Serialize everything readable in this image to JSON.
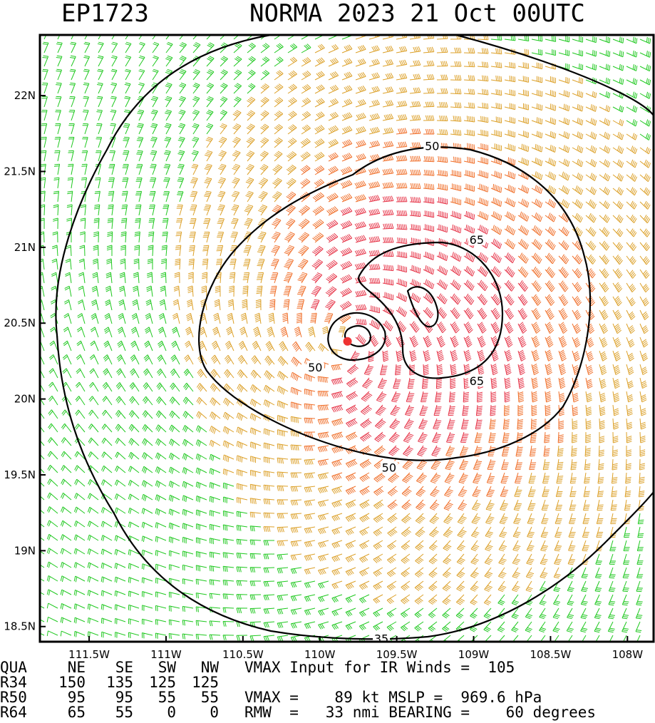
{
  "header": {
    "storm_id": "EP1723",
    "title": "NORMA 2023 21 Oct 00UTC"
  },
  "chart_data": {
    "type": "wind-barb-contour",
    "xlim": [
      -111.82,
      -107.83
    ],
    "ylim": [
      18.4,
      22.4
    ],
    "x_ticks": [
      {
        "value": -111.5,
        "label": "111.5W"
      },
      {
        "value": -111.0,
        "label": "111W"
      },
      {
        "value": -110.5,
        "label": "110.5W"
      },
      {
        "value": -110.0,
        "label": "110W"
      },
      {
        "value": -109.5,
        "label": "109.5W"
      },
      {
        "value": -109.0,
        "label": "109W"
      },
      {
        "value": -108.5,
        "label": "108.5W"
      },
      {
        "value": -108.0,
        "label": "108W"
      }
    ],
    "y_ticks": [
      {
        "value": 22.0,
        "label": "22N"
      },
      {
        "value": 21.5,
        "label": "21.5N"
      },
      {
        "value": 21.0,
        "label": "21N"
      },
      {
        "value": 20.5,
        "label": "20.5N"
      },
      {
        "value": 20.0,
        "label": "20N"
      },
      {
        "value": 19.5,
        "label": "19.5N"
      },
      {
        "value": 19.0,
        "label": "19N"
      },
      {
        "value": 18.5,
        "label": "18.5N"
      }
    ],
    "center": {
      "lon": -109.82,
      "lat": 20.38
    },
    "barb_colors": {
      "calm": "#b4b4b4",
      "lt34": "#1ec81e",
      "34_50": "#dca028",
      "50_64": "#f06e28",
      "ge64": "#e63246"
    },
    "contour_labels": [
      {
        "text": "50",
        "lon": -109.27,
        "lat": 21.67
      },
      {
        "text": "65",
        "lon": -108.98,
        "lat": 21.05
      },
      {
        "text": "65",
        "lon": -108.98,
        "lat": 20.12
      },
      {
        "text": "50",
        "lon": -109.55,
        "lat": 19.55
      },
      {
        "text": "50",
        "lon": -110.03,
        "lat": 20.21
      },
      {
        "text": "35",
        "lon": -109.6,
        "lat": 18.42
      }
    ]
  },
  "info": {
    "header_row": [
      "QUA",
      "NE",
      "SE",
      "SW",
      "NW"
    ],
    "vmax_input": "VMAX Input for IR Winds =  105",
    "rows": [
      {
        "label": "R34",
        "values": [
          "150",
          "135",
          "125",
          "125"
        ],
        "extra": ""
      },
      {
        "label": "R50",
        "values": [
          "95",
          "95",
          "55",
          "55"
        ],
        "extra": "VMAX =    89 kt MSLP =  969.6 hPa"
      },
      {
        "label": "R64",
        "values": [
          "65",
          "55",
          "0",
          "0"
        ],
        "extra": "RMW  =   33 nmi BEARING =    60 degrees"
      }
    ]
  }
}
